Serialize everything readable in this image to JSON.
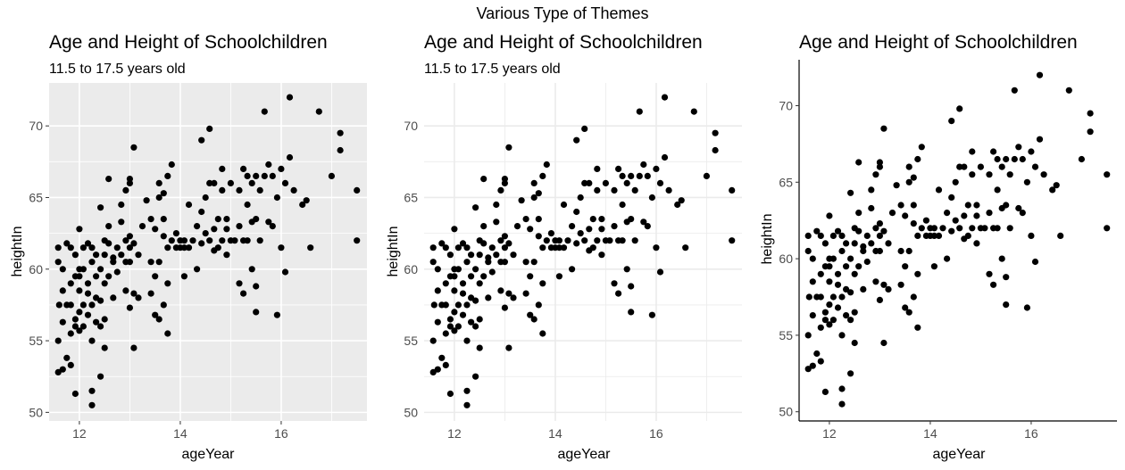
{
  "figure": {
    "title": "Various Type of Themes"
  },
  "chart_data": [
    {
      "type": "scatter",
      "theme": "grey",
      "title": "Age and Height of Schoolchildren",
      "subtitle": "11.5 to 17.5 years old",
      "xlabel": "ageYear",
      "ylabel": "heightIn",
      "xlim": [
        11.4,
        17.7
      ],
      "ylim": [
        49.4,
        73.0
      ],
      "xticks": [
        12,
        14,
        16
      ],
      "yticks": [
        50,
        55,
        60,
        65,
        70
      ],
      "grid": true,
      "legend": "none",
      "colors": {
        "panel": "#ebebeb",
        "grid": "#ffffff",
        "point": "#000000",
        "axis_text": "#4d4d4d"
      }
    },
    {
      "type": "scatter",
      "theme": "minimal",
      "title": "Age and Height of Schoolchildren",
      "subtitle": "11.5 to 17.5 years old",
      "xlabel": "ageYear",
      "ylabel": "heightIn",
      "xlim": [
        11.4,
        17.7
      ],
      "ylim": [
        49.4,
        73.0
      ],
      "xticks": [
        12,
        14,
        16
      ],
      "yticks": [
        50,
        55,
        60,
        65,
        70
      ],
      "grid": true,
      "legend": "none",
      "colors": {
        "panel": "#ffffff",
        "grid": "#ebebeb",
        "point": "#000000",
        "axis_text": "#4d4d4d"
      }
    },
    {
      "type": "scatter",
      "theme": "classic",
      "title": "Age and Height of Schoolchildren",
      "xlabel": "ageYear",
      "ylabel": "heightIn",
      "xlim": [
        11.4,
        17.7
      ],
      "ylim": [
        49.4,
        73.0
      ],
      "xticks": [
        12,
        14,
        16
      ],
      "yticks": [
        50,
        55,
        60,
        65,
        70
      ],
      "grid": false,
      "legend": "none",
      "colors": {
        "panel": "#ffffff",
        "axis_line": "#000000",
        "point": "#000000",
        "axis_text": "#4d4d4d"
      }
    }
  ],
  "points": [
    [
      11.58,
      60.5
    ],
    [
      11.58,
      55.0
    ],
    [
      11.58,
      52.8
    ],
    [
      11.58,
      61.5
    ],
    [
      11.6,
      57.5
    ],
    [
      11.67,
      56.3
    ],
    [
      11.67,
      53.0
    ],
    [
      11.67,
      58.5
    ],
    [
      11.67,
      60.0
    ],
    [
      11.75,
      61.8
    ],
    [
      11.75,
      57.5
    ],
    [
      11.75,
      53.8
    ],
    [
      11.83,
      53.3
    ],
    [
      11.83,
      55.5
    ],
    [
      11.83,
      59.0
    ],
    [
      11.83,
      61.5
    ],
    [
      11.83,
      57.5
    ],
    [
      11.92,
      56.0
    ],
    [
      11.92,
      56.5
    ],
    [
      11.92,
      59.5
    ],
    [
      11.92,
      61.0
    ],
    [
      11.92,
      51.3
    ],
    [
      12.0,
      55.7
    ],
    [
      12.0,
      57.0
    ],
    [
      12.0,
      58.5
    ],
    [
      12.0,
      59.5
    ],
    [
      12.0,
      60.0
    ],
    [
      12.0,
      62.8
    ],
    [
      12.08,
      56.0
    ],
    [
      12.08,
      57.5
    ],
    [
      12.08,
      60.0
    ],
    [
      12.08,
      61.5
    ],
    [
      12.17,
      56.8
    ],
    [
      12.17,
      58.3
    ],
    [
      12.17,
      59.0
    ],
    [
      12.17,
      61.8
    ],
    [
      12.25,
      55.0
    ],
    [
      12.25,
      51.5
    ],
    [
      12.25,
      50.5
    ],
    [
      12.25,
      57.5
    ],
    [
      12.25,
      60.5
    ],
    [
      12.25,
      61.5
    ],
    [
      12.33,
      56.3
    ],
    [
      12.33,
      58.0
    ],
    [
      12.33,
      59.5
    ],
    [
      12.33,
      61.0
    ],
    [
      12.42,
      56.0
    ],
    [
      12.42,
      52.5
    ],
    [
      12.42,
      57.8
    ],
    [
      12.42,
      60.0
    ],
    [
      12.42,
      64.3
    ],
    [
      12.5,
      54.5
    ],
    [
      12.5,
      56.5
    ],
    [
      12.5,
      59.0
    ],
    [
      12.5,
      61.0
    ],
    [
      12.5,
      62.0
    ],
    [
      12.58,
      59.5
    ],
    [
      12.58,
      61.8
    ],
    [
      12.58,
      63.0
    ],
    [
      12.58,
      66.3
    ],
    [
      12.67,
      60.5
    ],
    [
      12.67,
      58.0
    ],
    [
      12.67,
      60.8
    ],
    [
      12.75,
      59.8
    ],
    [
      12.75,
      61.5
    ],
    [
      12.83,
      61.0
    ],
    [
      12.83,
      64.5
    ],
    [
      12.83,
      63.3
    ],
    [
      12.92,
      58.5
    ],
    [
      12.92,
      60.5
    ],
    [
      12.92,
      62.0
    ],
    [
      12.92,
      65.5
    ],
    [
      13.0,
      57.3
    ],
    [
      13.0,
      60.5
    ],
    [
      13.0,
      61.5
    ],
    [
      13.0,
      62.3
    ],
    [
      13.0,
      66.0
    ],
    [
      13.0,
      66.3
    ],
    [
      13.08,
      54.5
    ],
    [
      13.08,
      58.3
    ],
    [
      13.08,
      61.8
    ],
    [
      13.08,
      68.5
    ],
    [
      13.17,
      58.0
    ],
    [
      13.17,
      61.0
    ],
    [
      13.25,
      63.0
    ],
    [
      13.33,
      64.8
    ],
    [
      13.42,
      58.3
    ],
    [
      13.42,
      60.5
    ],
    [
      13.42,
      63.5
    ],
    [
      13.5,
      56.8
    ],
    [
      13.5,
      59.5
    ],
    [
      13.5,
      62.8
    ],
    [
      13.58,
      56.5
    ],
    [
      13.58,
      60.5
    ],
    [
      13.58,
      65.0
    ],
    [
      13.58,
      66.0
    ],
    [
      13.67,
      57.5
    ],
    [
      13.67,
      62.3
    ],
    [
      13.67,
      63.5
    ],
    [
      13.67,
      65.3
    ],
    [
      13.75,
      55.5
    ],
    [
      13.75,
      59.0
    ],
    [
      13.75,
      61.5
    ],
    [
      13.75,
      66.5
    ],
    [
      13.83,
      62.0
    ],
    [
      13.83,
      67.3
    ],
    [
      13.92,
      61.5
    ],
    [
      13.92,
      62.5
    ],
    [
      14.0,
      61.5
    ],
    [
      14.0,
      62.0
    ],
    [
      14.08,
      59.5
    ],
    [
      14.08,
      61.5
    ],
    [
      14.08,
      62.0
    ],
    [
      14.17,
      61.5
    ],
    [
      14.17,
      64.5
    ],
    [
      14.25,
      62.0
    ],
    [
      14.33,
      60.0
    ],
    [
      14.33,
      63.0
    ],
    [
      14.42,
      61.8
    ],
    [
      14.42,
      64.0
    ],
    [
      14.42,
      69.0
    ],
    [
      14.5,
      62.5
    ],
    [
      14.5,
      65.0
    ],
    [
      14.58,
      62.0
    ],
    [
      14.58,
      66.0
    ],
    [
      14.58,
      69.8
    ],
    [
      14.67,
      62.8
    ],
    [
      14.67,
      66.0
    ],
    [
      14.67,
      61.3
    ],
    [
      14.75,
      61.5
    ],
    [
      14.75,
      63.5
    ],
    [
      14.83,
      62.0
    ],
    [
      14.83,
      65.5
    ],
    [
      14.83,
      67.0
    ],
    [
      14.92,
      61.0
    ],
    [
      14.92,
      62.8
    ],
    [
      14.92,
      63.5
    ],
    [
      15.0,
      62.0
    ],
    [
      15.0,
      66.0
    ],
    [
      15.08,
      62.0
    ],
    [
      15.17,
      59.0
    ],
    [
      15.17,
      63.0
    ],
    [
      15.17,
      65.5
    ],
    [
      15.25,
      58.3
    ],
    [
      15.25,
      62.0
    ],
    [
      15.25,
      67.0
    ],
    [
      15.33,
      62.0
    ],
    [
      15.33,
      64.5
    ],
    [
      15.33,
      66.5
    ],
    [
      15.42,
      60.0
    ],
    [
      15.42,
      63.3
    ],
    [
      15.42,
      66.0
    ],
    [
      15.5,
      57.0
    ],
    [
      15.5,
      58.8
    ],
    [
      15.5,
      63.5
    ],
    [
      15.5,
      66.5
    ],
    [
      15.58,
      62.0
    ],
    [
      15.58,
      65.5
    ],
    [
      15.67,
      66.5
    ],
    [
      15.67,
      71.0
    ],
    [
      15.75,
      63.3
    ],
    [
      15.75,
      67.3
    ],
    [
      15.83,
      63.0
    ],
    [
      15.83,
      66.5
    ],
    [
      15.92,
      56.8
    ],
    [
      15.92,
      65.0
    ],
    [
      16.0,
      61.5
    ],
    [
      16.0,
      67.0
    ],
    [
      16.08,
      59.8
    ],
    [
      16.08,
      66.0
    ],
    [
      16.17,
      67.8
    ],
    [
      16.17,
      72.0
    ],
    [
      16.25,
      65.5
    ],
    [
      16.42,
      64.5
    ],
    [
      16.5,
      64.8
    ],
    [
      16.58,
      61.5
    ],
    [
      16.75,
      71.0
    ],
    [
      17.0,
      66.5
    ],
    [
      17.17,
      68.3
    ],
    [
      17.17,
      69.5
    ],
    [
      17.5,
      65.5
    ],
    [
      17.5,
      62.0
    ]
  ]
}
